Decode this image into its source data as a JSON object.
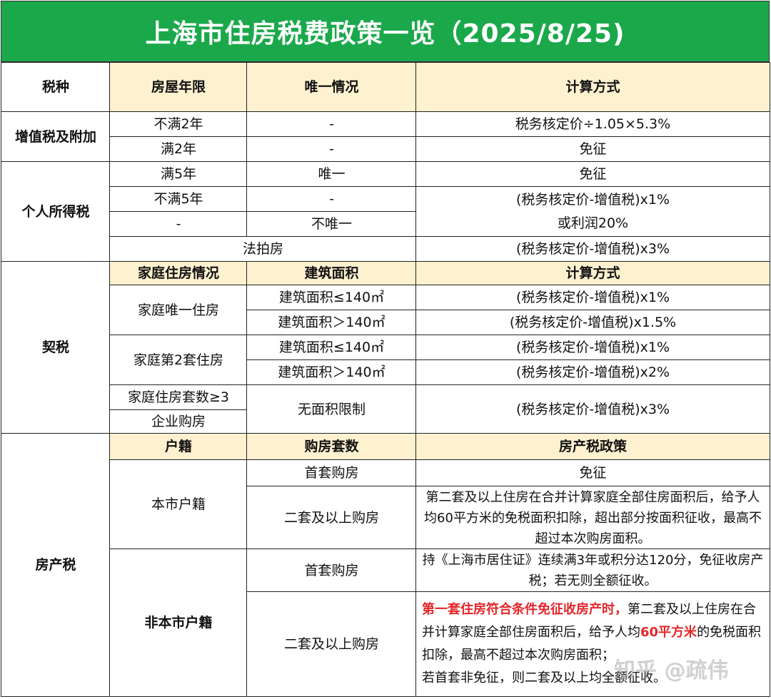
{
  "title": "上海市住房税费政策一览（2025/8/25)",
  "header": {
    "tax_type": "税种",
    "house_age": "房屋年限",
    "uniqueness": "唯一情况",
    "calc": "计算方式"
  },
  "vat": {
    "name": "增值税及附加",
    "rows": [
      {
        "age": "不满2年",
        "unique": "-",
        "calc": "税务核定价÷1.05×5.3%"
      },
      {
        "age": "满2年",
        "unique": "-",
        "calc": "免征"
      }
    ]
  },
  "pit": {
    "name": "个人所得税",
    "rows": [
      {
        "age": "满5年",
        "unique": "唯一",
        "calc": "免征"
      },
      {
        "age": "不满5年",
        "unique": "-"
      },
      {
        "age": "-",
        "unique": "不唯一"
      }
    ],
    "merged_calc_line1": "(税务核定价-增值税)x1%",
    "merged_calc_line2": "或利润20%",
    "auction": {
      "label": "法拍房",
      "calc": "(税务核定价-增值税)x3%"
    }
  },
  "deed": {
    "name": "契税",
    "header": {
      "family": "家庭住房情况",
      "area": "建筑面积",
      "calc": "计算方式"
    },
    "groups": [
      {
        "label": "家庭唯一住房",
        "rows": [
          {
            "area": "建筑面积≤140㎡",
            "calc": "(税务核定价-增值税)x1%"
          },
          {
            "area": "建筑面积＞140㎡",
            "calc": "(税务核定价-增值税)x1.5%"
          }
        ]
      },
      {
        "label": "家庭第2套住房",
        "rows": [
          {
            "area": "建筑面积≤140㎡",
            "calc": "(税务核定价-增值税)x1%"
          },
          {
            "area": "建筑面积＞140㎡",
            "calc": "(税务核定价-增值税)x2%"
          }
        ]
      }
    ],
    "third": {
      "label1": "家庭住房套数≥3",
      "label2": "企业购房",
      "area": "无面积限制",
      "calc": "(税务核定价-增值税)x3%"
    }
  },
  "property": {
    "name": "房产税",
    "header": {
      "hukou": "户籍",
      "count": "购房套数",
      "policy": "房产税政策"
    },
    "local": {
      "label": "本市户籍",
      "first": {
        "count": "首套购房",
        "policy": "免征"
      },
      "second": {
        "count": "二套及以上购房",
        "policy": "第二套及以上住房在合并计算家庭全部住房面积后，给予人均60平方米的免税面积扣除，超出部分按面积征收，最高不超过本次购房面积。"
      }
    },
    "nonlocal": {
      "label": "非本市户籍",
      "first": {
        "count": "首套购房",
        "policy": "持《上海市居住证》连续满3年或积分达120分，免征收房产税；若无则全额征收。"
      },
      "second": {
        "count": "二套及以上购房",
        "policy_red1": "第一套住房符合条件免征收房产时，",
        "policy_part2": "第二套及以上住房在合并计算家庭全部住房面积后，给予人均",
        "policy_red2": "60平方米",
        "policy_part3": "的免税面积扣除，最高不超过本次购房面积；",
        "policy_part4": "若首套非免征，则二套及以上均全额征收。"
      }
    }
  },
  "watermark": "知乎 @疏伟",
  "colors": {
    "title_bg": "#1ba84b",
    "header_bg": "#fdf1cf",
    "highlight": "#e4262a"
  }
}
